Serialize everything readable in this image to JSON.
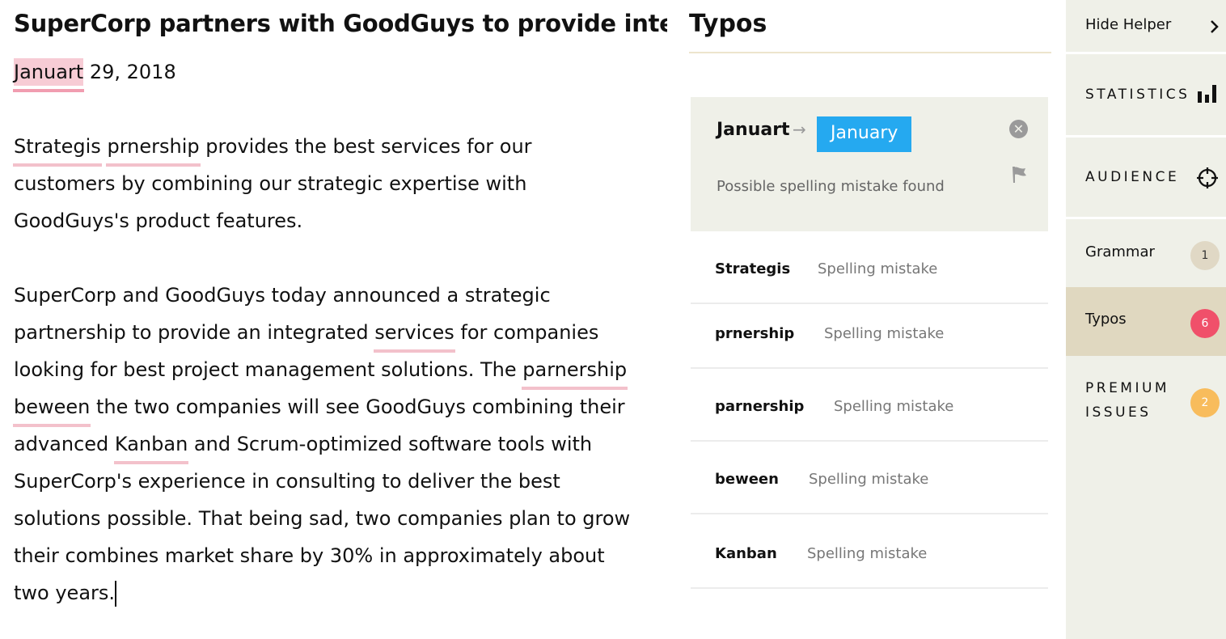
{
  "editor": {
    "title": "SuperCorp partners with GoodGuys to provide integrated services",
    "lines": [
      [
        {
          "t": "Januart",
          "typo": true,
          "active": true
        },
        {
          "t": " 29, 2018"
        }
      ],
      [
        {
          "t": "Strategis",
          "typo": true
        },
        {
          "t": " "
        },
        {
          "t": "prnership",
          "typo": true
        },
        {
          "t": " provides the best services for our"
        }
      ],
      [
        {
          "t": "customers by combining our strategic expertise with"
        }
      ],
      [
        {
          "t": "GoodGuys's product features."
        }
      ],
      [
        {
          "t": "SuperCorp and GoodGuys today announced a strategic"
        }
      ],
      [
        {
          "t": "partnership to provide an integrated "
        },
        {
          "t": "services",
          "typo": true
        },
        {
          "t": " for companies"
        }
      ],
      [
        {
          "t": "looking for best project management solutions. The "
        },
        {
          "t": "parnership",
          "typo": true
        }
      ],
      [
        {
          "t": "beween",
          "typo": true
        },
        {
          "t": " the two companies will see GoodGuys combining their"
        }
      ],
      [
        {
          "t": "advanced "
        },
        {
          "t": "Kanban",
          "typo": true
        },
        {
          "t": " and Scrum-optimized software tools with"
        }
      ],
      [
        {
          "t": "SuperCorp's experience in consulting to deliver the best"
        }
      ],
      [
        {
          "t": "solutions possible. That being sad, two companies plan to grow"
        }
      ],
      [
        {
          "t": "their combines market share by 30% in approximately about"
        }
      ],
      [
        {
          "t": "two years."
        }
      ]
    ]
  },
  "panel": {
    "title": "Typos",
    "card": {
      "word": "Januart",
      "arrow": "→",
      "suggestion": "January",
      "message": "Possible spelling mistake found",
      "icons": [
        "close-circle-icon",
        "flag-icon"
      ]
    },
    "items": [
      {
        "word": "Strategis",
        "desc": "Spelling mistake"
      },
      {
        "word": "prnership",
        "desc": "Spelling mistake"
      },
      {
        "word": "parnership",
        "desc": "Spelling mistake"
      },
      {
        "word": "beween",
        "desc": "Spelling mistake"
      },
      {
        "word": "Kanban",
        "desc": "Spelling mistake"
      }
    ]
  },
  "sidebar": {
    "hide_helper": "Hide Helper",
    "statistics": "STATISTICS",
    "audience": "AUDIENCE",
    "grammar": {
      "label": "Grammar",
      "count": "1"
    },
    "typos": {
      "label": "Typos",
      "count": "6"
    },
    "premium": {
      "label1": "PREMIUM",
      "label2": "ISSUES",
      "count": "2"
    }
  },
  "colors": {
    "accent": "#25a9f0",
    "typo_underline": "#f3c1cb",
    "typos_badge": "#f0506a",
    "premium_badge": "#f8bc5c",
    "grammar_badge": "#e0d8c5",
    "selected_bg": "#e0d8c0",
    "panel_bg": "#eff0e8"
  }
}
